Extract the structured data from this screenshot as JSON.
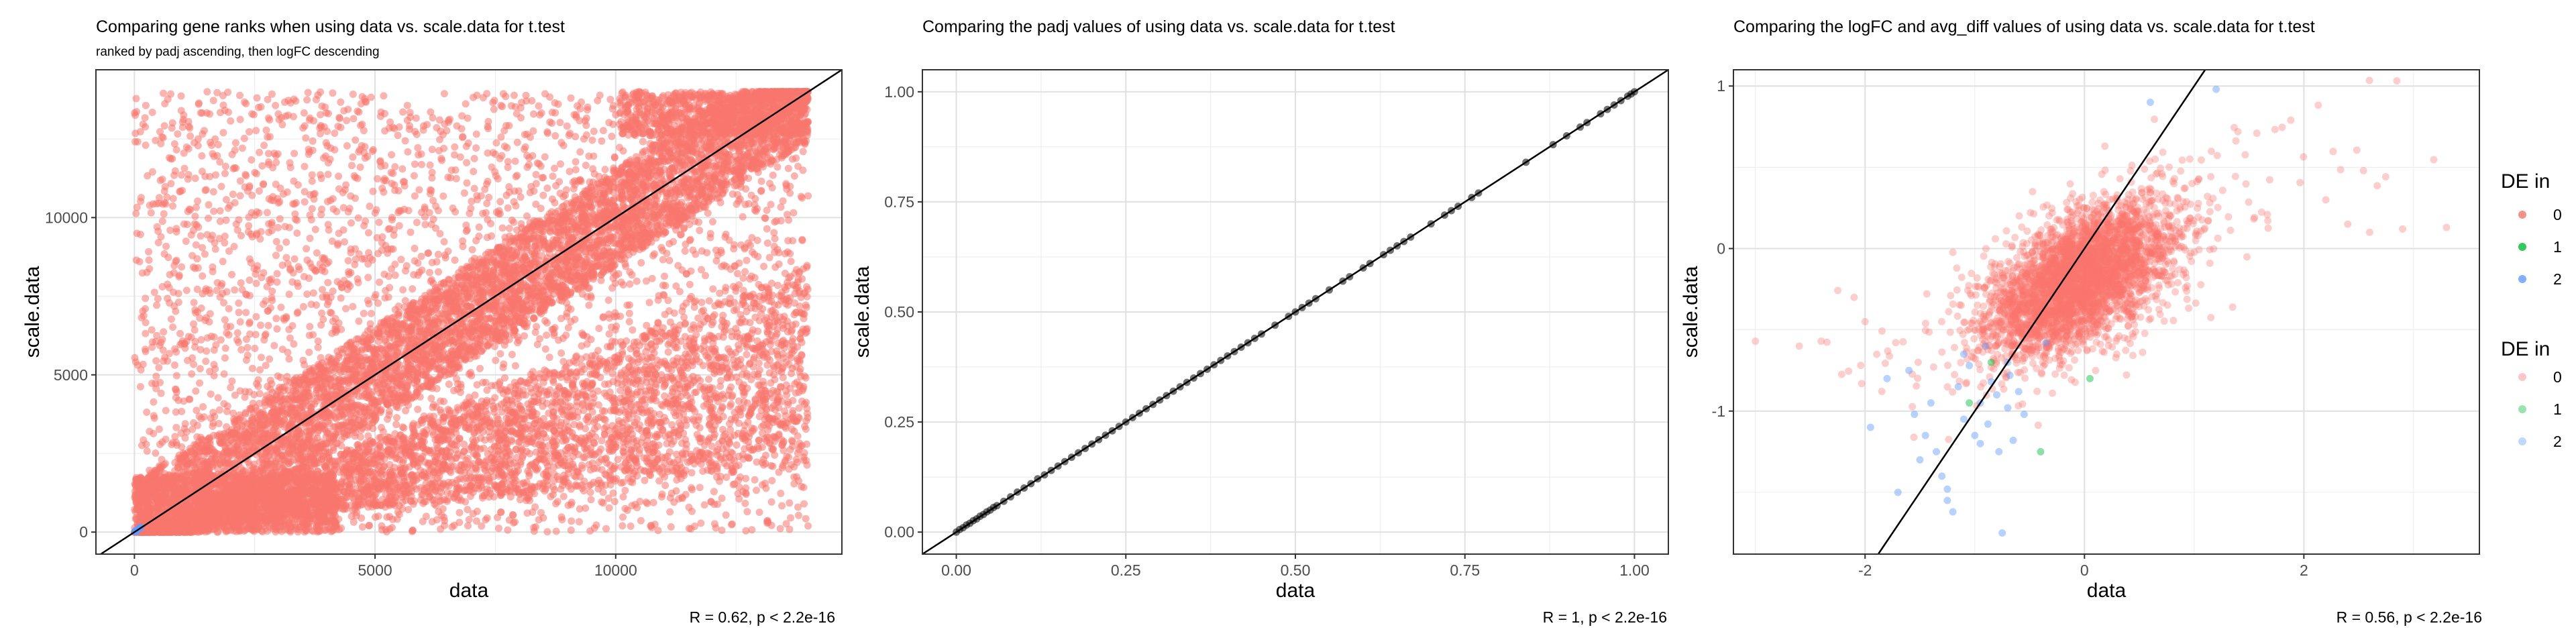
{
  "chart_data": [
    {
      "type": "scatter",
      "title": "Comparing gene ranks when using data vs. scale.data for t.test",
      "subtitle": "ranked by padj ascending, then logFC descending",
      "xlabel": "data",
      "ylabel": "scale.data",
      "xlim": [
        -800,
        14700
      ],
      "ylim": [
        -700,
        14700
      ],
      "xticks": [
        0,
        5000,
        10000
      ],
      "yticks": [
        0,
        5000,
        10000
      ],
      "xtick_labels": [
        "0",
        "5000",
        "10000"
      ],
      "ytick_labels": [
        "0",
        "5000",
        "10000"
      ],
      "grid": true,
      "reference_line": {
        "slope": 1,
        "intercept": 0
      },
      "point_color": "#F8766D",
      "accent_point_color": "#619CFF",
      "point_count": 14000,
      "max_rank": 14000,
      "caption": "R = 0.62, p < 2.2e-16"
    },
    {
      "type": "scatter",
      "title": "Comparing the padj values of using data vs. scale.data for t.test",
      "xlabel": "data",
      "ylabel": "scale.data",
      "xlim": [
        -0.05,
        1.05
      ],
      "ylim": [
        -0.05,
        1.05
      ],
      "xticks": [
        0,
        0.25,
        0.5,
        0.75,
        1
      ],
      "yticks": [
        0,
        0.25,
        0.5,
        0.75,
        1
      ],
      "xtick_labels": [
        "0.00",
        "0.25",
        "0.50",
        "0.75",
        "1.00"
      ],
      "ytick_labels": [
        "0.00",
        "0.25",
        "0.50",
        "0.75",
        "1.00"
      ],
      "grid": true,
      "reference_line": {
        "slope": 1,
        "intercept": 0
      },
      "point_color": "#000000",
      "points": [
        [
          0,
          0
        ],
        [
          0.005,
          0.006
        ],
        [
          0.01,
          0.01
        ],
        [
          0.015,
          0.016
        ],
        [
          0.02,
          0.02
        ],
        [
          0.025,
          0.026
        ],
        [
          0.03,
          0.03
        ],
        [
          0.035,
          0.036
        ],
        [
          0.04,
          0.04
        ],
        [
          0.045,
          0.046
        ],
        [
          0.05,
          0.05
        ],
        [
          0.055,
          0.056
        ],
        [
          0.06,
          0.06
        ],
        [
          0.07,
          0.07
        ],
        [
          0.08,
          0.08
        ],
        [
          0.09,
          0.091
        ],
        [
          0.1,
          0.1
        ],
        [
          0.11,
          0.11
        ],
        [
          0.12,
          0.121
        ],
        [
          0.13,
          0.13
        ],
        [
          0.14,
          0.14
        ],
        [
          0.15,
          0.15
        ],
        [
          0.16,
          0.16
        ],
        [
          0.17,
          0.17
        ],
        [
          0.18,
          0.18
        ],
        [
          0.19,
          0.19
        ],
        [
          0.2,
          0.2
        ],
        [
          0.21,
          0.21
        ],
        [
          0.22,
          0.22
        ],
        [
          0.23,
          0.23
        ],
        [
          0.24,
          0.24
        ],
        [
          0.25,
          0.25
        ],
        [
          0.26,
          0.26
        ],
        [
          0.27,
          0.27
        ],
        [
          0.28,
          0.28
        ],
        [
          0.29,
          0.29
        ],
        [
          0.3,
          0.3
        ],
        [
          0.31,
          0.31
        ],
        [
          0.32,
          0.32
        ],
        [
          0.33,
          0.33
        ],
        [
          0.34,
          0.34
        ],
        [
          0.35,
          0.35
        ],
        [
          0.36,
          0.36
        ],
        [
          0.37,
          0.37
        ],
        [
          0.38,
          0.38
        ],
        [
          0.39,
          0.39
        ],
        [
          0.4,
          0.4
        ],
        [
          0.41,
          0.41
        ],
        [
          0.42,
          0.42
        ],
        [
          0.43,
          0.43
        ],
        [
          0.44,
          0.44
        ],
        [
          0.45,
          0.45
        ],
        [
          0.47,
          0.47
        ],
        [
          0.49,
          0.49
        ],
        [
          0.5,
          0.5
        ],
        [
          0.51,
          0.51
        ],
        [
          0.52,
          0.52
        ],
        [
          0.53,
          0.53
        ],
        [
          0.55,
          0.55
        ],
        [
          0.57,
          0.57
        ],
        [
          0.58,
          0.58
        ],
        [
          0.6,
          0.6
        ],
        [
          0.61,
          0.61
        ],
        [
          0.63,
          0.63
        ],
        [
          0.64,
          0.64
        ],
        [
          0.65,
          0.65
        ],
        [
          0.66,
          0.66
        ],
        [
          0.67,
          0.67
        ],
        [
          0.7,
          0.7
        ],
        [
          0.72,
          0.72
        ],
        [
          0.73,
          0.73
        ],
        [
          0.74,
          0.74
        ],
        [
          0.76,
          0.76
        ],
        [
          0.77,
          0.77
        ],
        [
          0.84,
          0.84
        ],
        [
          0.88,
          0.88
        ],
        [
          0.9,
          0.9
        ],
        [
          0.92,
          0.92
        ],
        [
          0.93,
          0.93
        ],
        [
          0.95,
          0.95
        ],
        [
          0.96,
          0.96
        ],
        [
          0.97,
          0.97
        ],
        [
          0.98,
          0.98
        ],
        [
          0.99,
          0.99
        ],
        [
          0.995,
          0.995
        ],
        [
          1,
          1
        ]
      ],
      "caption": "R = 1, p < 2.2e-16"
    },
    {
      "type": "scatter",
      "title": "Comparing the logFC and avg_diff values of using data vs. scale.data for t.test",
      "xlabel": "data",
      "ylabel": "scale.data",
      "xlim": [
        -3.2,
        3.6
      ],
      "ylim": [
        -1.88,
        1.1
      ],
      "xticks": [
        -2,
        0,
        2
      ],
      "yticks": [
        -1,
        0,
        1
      ],
      "xtick_labels": [
        "-2",
        "0",
        "2"
      ],
      "ytick_labels": [
        "-1",
        "0",
        "1"
      ],
      "grid": true,
      "reference_line": {
        "slope": 1,
        "intercept": 0
      },
      "caption": "R = 0.56, p < 2.2e-16",
      "legends": [
        {
          "title": "DE in",
          "entries": [
            {
              "label": "0",
              "color": "#F8766D",
              "alpha": 0.8
            },
            {
              "label": "1",
              "color": "#00BA38",
              "alpha": 0.8
            },
            {
              "label": "2",
              "color": "#619CFF",
              "alpha": 0.8
            }
          ]
        },
        {
          "title": "DE in",
          "entries": [
            {
              "label": "0",
              "color": "#F8766D",
              "alpha": 0.4
            },
            {
              "label": "1",
              "color": "#00BA38",
              "alpha": 0.4
            },
            {
              "label": "2",
              "color": "#619CFF",
              "alpha": 0.4
            }
          ]
        }
      ],
      "red_points_count": 3600,
      "blue_points": [
        [
          -1.8,
          -0.8
        ],
        [
          -1.6,
          -0.75
        ],
        [
          -1.55,
          -1.02
        ],
        [
          -1.4,
          -0.95
        ],
        [
          -1.35,
          -1.25
        ],
        [
          -1.3,
          -1.4
        ],
        [
          -1.25,
          -1.48
        ],
        [
          -1.2,
          -1.62
        ],
        [
          -1.15,
          -0.85
        ],
        [
          -1.1,
          -1.05
        ],
        [
          -1.05,
          -0.72
        ],
        [
          -1.0,
          -1.15
        ],
        [
          -0.95,
          -0.95
        ],
        [
          -0.9,
          -0.6
        ],
        [
          -0.88,
          -1.08
        ],
        [
          -0.85,
          -0.82
        ],
        [
          -0.8,
          -0.9
        ],
        [
          -0.78,
          -1.25
        ],
        [
          -0.75,
          -1.75
        ],
        [
          -0.7,
          -0.98
        ],
        [
          -0.68,
          -0.78
        ],
        [
          -0.6,
          -0.88
        ],
        [
          -0.55,
          -1.02
        ],
        [
          -1.95,
          -1.1
        ],
        [
          -1.5,
          -1.3
        ],
        [
          -1.7,
          -1.5
        ],
        [
          -1.25,
          -1.55
        ],
        [
          -0.65,
          -1.18
        ],
        [
          -0.95,
          -1.2
        ],
        [
          -1.45,
          -1.15
        ],
        [
          -0.7,
          -0.7
        ],
        [
          0.6,
          0.9
        ],
        [
          1.2,
          0.98
        ],
        [
          -0.35,
          -0.58
        ],
        [
          -1.1,
          -0.65
        ]
      ],
      "green_points": [
        [
          -0.4,
          -1.25
        ],
        [
          0.05,
          -0.8
        ],
        [
          -1.05,
          -0.95
        ],
        [
          -0.85,
          -0.7
        ]
      ]
    }
  ]
}
